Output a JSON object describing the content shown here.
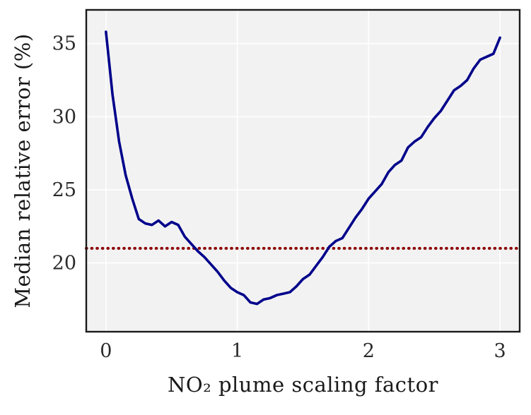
{
  "chart_data": {
    "type": "line",
    "title": "",
    "xlabel": "NO₂ plume scaling factor",
    "ylabel": "Median relative error (%)",
    "xlim": [
      -0.15,
      3.15
    ],
    "ylim": [
      15.3,
      37.3
    ],
    "x_ticks": [
      0,
      1,
      2,
      3
    ],
    "y_ticks": [
      20,
      25,
      30,
      35
    ],
    "grid": true,
    "plot_bg_color": "#f2f2f2",
    "grid_color": "#ffffff",
    "frame_color": "#1a1a1a",
    "tick_label_color": "#2b2b2b",
    "series": [
      {
        "name": "median-relative-error",
        "color": "#00008B",
        "x": [
          0,
          0.05,
          0.1,
          0.15,
          0.2,
          0.25,
          0.3,
          0.35,
          0.4,
          0.45,
          0.5,
          0.55,
          0.6,
          0.65,
          0.7,
          0.75,
          0.8,
          0.85,
          0.9,
          0.95,
          1,
          1.05,
          1.1,
          1.15,
          1.2,
          1.25,
          1.3,
          1.35,
          1.4,
          1.45,
          1.5,
          1.55,
          1.6,
          1.65,
          1.7,
          1.75,
          1.8,
          1.85,
          1.9,
          1.95,
          2,
          2.05,
          2.1,
          2.15,
          2.2,
          2.25,
          2.3,
          2.35,
          2.4,
          2.45,
          2.5,
          2.55,
          2.6,
          2.65,
          2.7,
          2.75,
          2.8,
          2.85,
          2.9,
          2.95,
          3
        ],
        "y": [
          35.8,
          31.5,
          28.3,
          26.0,
          24.4,
          23.0,
          22.7,
          22.6,
          22.9,
          22.5,
          22.8,
          22.6,
          21.8,
          21.3,
          20.8,
          20.4,
          19.9,
          19.4,
          18.8,
          18.3,
          18.0,
          17.8,
          17.3,
          17.2,
          17.5,
          17.6,
          17.8,
          17.9,
          18.0,
          18.4,
          18.9,
          19.2,
          19.8,
          20.4,
          21.1,
          21.5,
          21.7,
          22.4,
          23.1,
          23.7,
          24.4,
          24.9,
          25.4,
          26.2,
          26.7,
          27.0,
          27.9,
          28.3,
          28.6,
          29.3,
          29.9,
          30.4,
          31.1,
          31.8,
          32.1,
          32.5,
          33.3,
          33.9,
          34.1,
          34.3,
          35.4
        ]
      }
    ],
    "reference_line": {
      "y": 21.0,
      "color": "#8B0000",
      "style": "dotted"
    }
  }
}
